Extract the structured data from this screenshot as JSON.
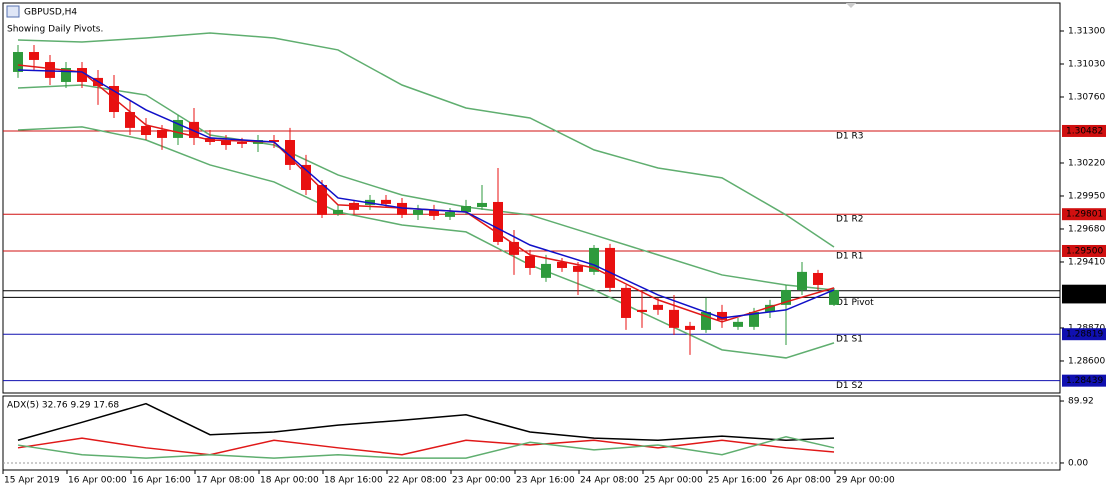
{
  "chart_data": {
    "type": "candlestick",
    "title": "GBPUSD,H4",
    "subtitle": "Showing Daily Pivots.",
    "x_labels": [
      "15 Apr 2019",
      "16 Apr 00:00",
      "16 Apr 16:00",
      "17 Apr 08:00",
      "18 Apr 00:00",
      "18 Apr 16:00",
      "22 Apr 08:00",
      "23 Apr 00:00",
      "23 Apr 16:00",
      "24 Apr 08:00",
      "25 Apr 00:00",
      "25 Apr 16:00",
      "26 Apr 08:00",
      "29 Apr 00:00"
    ],
    "up_color": "#2e9a3c",
    "down_color": "#e81010",
    "open": [
      1.30965,
      1.31128,
      1.31046,
      1.30883,
      1.30997,
      1.30916,
      1.3085,
      1.30637,
      1.30523,
      1.3049,
      1.30425,
      1.30556,
      1.30425,
      1.30408,
      1.30392,
      1.30376,
      1.30408,
      1.30408,
      1.30204,
      1.3004,
      1.29803,
      1.29893,
      1.29877,
      1.29918,
      1.29893,
      1.29795,
      1.29836,
      1.29779,
      1.29819,
      1.2986,
      1.29901,
      1.29574,
      1.29459,
      1.2928,
      1.2941,
      1.29378,
      1.29329,
      1.29525,
      1.29198,
      1.29018,
      1.29059,
      1.29018,
      1.28887,
      1.28854,
      1.29001,
      1.28879,
      1.28879,
      1.29001,
      1.29059,
      1.29181,
      1.2932,
      1.29059
    ],
    "high": [
      1.31185,
      1.31185,
      1.31104,
      1.31046,
      1.31046,
      1.30981,
      1.3094,
      1.30736,
      1.30588,
      1.30531,
      1.30613,
      1.3067,
      1.3049,
      1.30449,
      1.30425,
      1.30449,
      1.30449,
      1.30507,
      1.30286,
      1.30081,
      1.29877,
      1.29918,
      1.29958,
      1.29958,
      1.29934,
      1.29877,
      1.29877,
      1.29852,
      1.29918,
      1.3004,
      1.30179,
      1.29672,
      1.29509,
      1.29468,
      1.29443,
      1.2941,
      1.29549,
      1.29558,
      1.29222,
      1.29181,
      1.29116,
      1.2914,
      1.2892,
      1.29116,
      1.29059,
      1.28952,
      1.29034,
      1.291,
      1.29222,
      1.2941,
      1.29345,
      1.29198
    ],
    "low": [
      1.30916,
      1.30981,
      1.30858,
      1.30834,
      1.30834,
      1.30695,
      1.30588,
      1.30449,
      1.30408,
      1.30327,
      1.30367,
      1.30367,
      1.30367,
      1.30327,
      1.30343,
      1.3031,
      1.30343,
      1.30163,
      1.29958,
      1.2977,
      1.29787,
      1.29795,
      1.29836,
      1.29852,
      1.2977,
      1.29754,
      1.29754,
      1.29754,
      1.29795,
      1.29836,
      1.29549,
      1.29304,
      1.29304,
      1.29247,
      1.29329,
      1.2914,
      1.29304,
      1.29165,
      1.28854,
      1.28871,
      1.28977,
      1.28813,
      1.2865,
      1.2883,
      1.28871,
      1.28854,
      1.28854,
      1.28952,
      1.28731,
      1.2914,
      1.29181,
      1.2905
    ],
    "close": [
      1.31128,
      1.31063,
      1.30916,
      1.30997,
      1.30883,
      1.3085,
      1.30637,
      1.30507,
      1.30449,
      1.30425,
      1.30572,
      1.30425,
      1.30392,
      1.30367,
      1.30376,
      1.30408,
      1.30392,
      1.30204,
      1.29999,
      1.29795,
      1.29836,
      1.29836,
      1.29918,
      1.29885,
      1.29795,
      1.29836,
      1.29787,
      1.29819,
      1.29868,
      1.29893,
      1.29574,
      1.29468,
      1.29361,
      1.29394,
      1.29361,
      1.29329,
      1.29525,
      1.29198,
      1.28952,
      1.29001,
      1.29018,
      1.28871,
      1.28854,
      1.29001,
      1.28936,
      1.2892,
      1.29001,
      1.29059,
      1.29181,
      1.29329,
      1.29222,
      1.29181
    ],
    "series": [
      {
        "color": "#5fae6f",
        "x": [
          0,
          4,
          8,
          12,
          16,
          20,
          24,
          28,
          32,
          36,
          40,
          44,
          48,
          51
        ],
        "values": [
          1.31226,
          1.3121,
          1.31243,
          1.31284,
          1.31243,
          1.31145,
          1.30858,
          1.3067,
          1.30588,
          1.30327,
          1.30179,
          1.30098,
          1.29795,
          1.29533
        ]
      },
      {
        "color": "#5fae6f",
        "x": [
          0,
          4,
          8,
          12,
          16,
          20,
          24,
          28,
          32,
          36,
          40,
          44,
          48,
          51
        ],
        "values": [
          1.30834,
          1.30858,
          1.30776,
          1.30449,
          1.30367,
          1.30122,
          1.29958,
          1.2986,
          1.29795,
          1.29631,
          1.29468,
          1.29304,
          1.29222,
          1.29181
        ]
      },
      {
        "color": "#5fae6f",
        "x": [
          0,
          4,
          8,
          12,
          16,
          20,
          24,
          28,
          32,
          36,
          40,
          44,
          48,
          51
        ],
        "values": [
          1.3049,
          1.30515,
          1.30408,
          1.30204,
          1.30065,
          1.29819,
          1.29713,
          1.29656,
          1.29386,
          1.29181,
          1.28936,
          1.28691,
          1.28625,
          1.28748
        ]
      },
      {
        "color": "#e01818",
        "x": [
          0,
          4,
          8,
          12,
          16,
          20,
          24,
          28,
          32,
          36,
          40,
          44,
          48,
          51
        ],
        "values": [
          1.31022,
          1.30965,
          1.30531,
          1.30408,
          1.30392,
          1.29877,
          1.29852,
          1.29819,
          1.29468,
          1.29361,
          1.291,
          1.2892,
          1.29083,
          1.29198
        ]
      },
      {
        "color": "#1010c8",
        "x": [
          0,
          4,
          8,
          12,
          16,
          20,
          24,
          28,
          32,
          36,
          40,
          44,
          48,
          51
        ],
        "values": [
          1.30981,
          1.30965,
          1.30654,
          1.30425,
          1.30392,
          1.29934,
          1.29852,
          1.29819,
          1.29549,
          1.29386,
          1.2914,
          1.28952,
          1.29018,
          1.29181
        ]
      }
    ],
    "levels": [
      {
        "name": "D1 R3",
        "value": 1.30482,
        "color": "#d01010"
      },
      {
        "name": "D1 R2",
        "value": 1.29801,
        "color": "#d01010"
      },
      {
        "name": "D1 R1",
        "value": {
          "value": 1.295,
          "label": "1.29500"
        },
        "color": "#d01010"
      },
      {
        "name": "D1 Pivot",
        "value": {
          "value": 1.2912,
          "label": "1.29120"
        },
        "color": "#000000"
      },
      {
        "name": "D1 S1",
        "value": 1.28819,
        "color": "#1010b0"
      },
      {
        "name": "D1 S2",
        "value": 1.28439,
        "color": "#1010b0"
      }
    ],
    "current_price": 1.29175,
    "ylim": [
      1.28338,
      1.31529
    ],
    "yticks": [
      {
        "value": 1.313,
        "label": "1.31300"
      },
      {
        "value": 1.3103,
        "label": "1.31030"
      },
      {
        "value": 1.3076,
        "label": "1.30760"
      },
      {
        "value": 1.3022,
        "label": "1.30220"
      },
      {
        "value": 1.2995,
        "label": "1.29950"
      },
      {
        "value": 1.2968,
        "label": "1.29680"
      },
      {
        "value": 1.2941,
        "label": "1.29410"
      },
      {
        "value": 1.2887,
        "label": "1.28870"
      },
      {
        "value": 1.286,
        "label": "1.28600"
      }
    ],
    "adx": {
      "title": "ADX(5) 32.76 9.29 17.68",
      "ylim": [
        -10.2,
        97.2
      ],
      "yticks": [
        89.92,
        {
          "value": 0,
          "label": "0.00"
        }
      ],
      "series": [
        {
          "color": "#000000",
          "x": [
            0,
            4,
            8,
            12,
            16,
            20,
            24,
            28,
            32,
            36,
            40,
            44,
            48,
            51
          ],
          "values": [
            33,
            59,
            86,
            41,
            45,
            55,
            62,
            70,
            45,
            36,
            33,
            39,
            33,
            36
          ]
        },
        {
          "color": "#e01818",
          "x": [
            0,
            4,
            8,
            12,
            16,
            20,
            24,
            28,
            32,
            36,
            40,
            44,
            48,
            51
          ],
          "values": [
            22,
            36,
            22,
            12,
            33,
            22,
            12,
            33,
            26,
            33,
            22,
            33,
            22,
            16
          ]
        },
        {
          "color": "#5fae6f",
          "x": [
            0,
            4,
            8,
            12,
            16,
            20,
            24,
            28,
            32,
            36,
            40,
            44,
            48,
            51
          ],
          "values": [
            26,
            12,
            7,
            12,
            7,
            12,
            7,
            7,
            30,
            19,
            26,
            12,
            38,
            22
          ]
        }
      ]
    }
  }
}
